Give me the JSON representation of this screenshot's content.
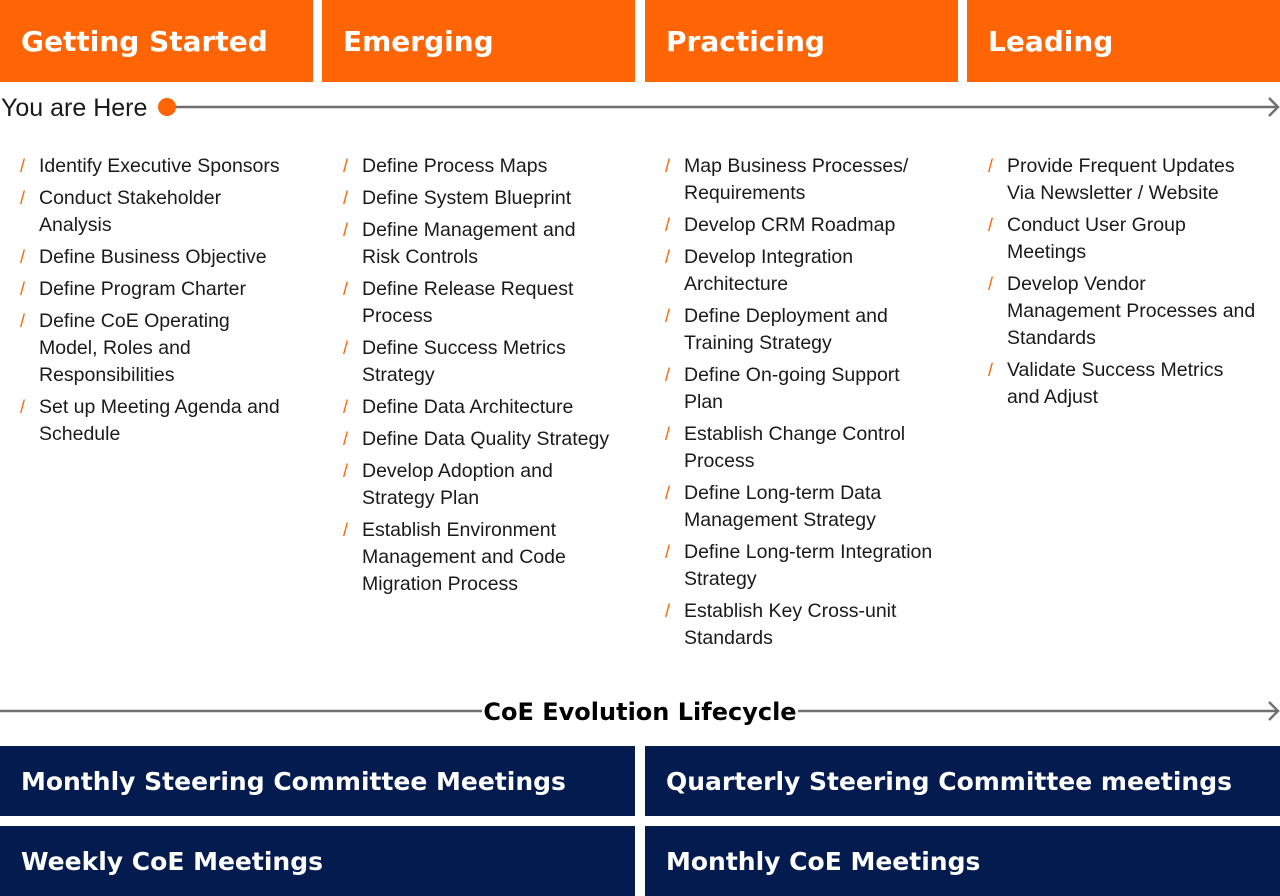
{
  "stages": [
    {
      "title": "Getting Started"
    },
    {
      "title": "Emerging"
    },
    {
      "title": "Practicing"
    },
    {
      "title": "Leading"
    }
  ],
  "timeline": {
    "here_label": "You are Here",
    "marker_color": "#ff6405",
    "line_color": "#707070"
  },
  "columns": [
    [
      "Identify Executive Sponsors",
      "Conduct Stakeholder Analysis",
      "Define Business Objective",
      "Define Program Charter",
      "Define CoE Operating Model, Roles and Responsibilities",
      "Set up Meeting Agenda and Schedule"
    ],
    [
      "Define Process Maps",
      "Define System Blueprint",
      "Define Management and Risk Controls",
      "Define Release Request Process",
      "Define Success Metrics Strategy",
      "Define Data Architecture",
      "Define Data Quality Strategy",
      "Develop Adoption and Strategy Plan",
      "Establish Environment Management and Code Migration Process"
    ],
    [
      "Map Business Processes/ Requirements",
      "Develop CRM Roadmap",
      "Develop Integration Architecture",
      "Define Deployment and Training Strategy",
      "Define On-going Support Plan",
      "Establish Change Control Process",
      "Define Long-term Data Management Strategy",
      "Define Long-term Integration Strategy",
      "Establish Key Cross-unit Standards"
    ],
    [
      "Provide Frequent Updates Via Newsletter / Website",
      "Conduct User Group Meetings",
      "Develop Vendor Management Processes and Standards",
      "Validate Success Metrics and Adjust"
    ]
  ],
  "bullet_glyph": "/",
  "lifecycle": {
    "title": "CoE Evolution Lifecycle"
  },
  "meetings": [
    {
      "label": "Monthly Steering Committee Meetings"
    },
    {
      "label": "Quarterly Steering Committee meetings"
    },
    {
      "label": "Weekly CoE Meetings"
    },
    {
      "label": "Monthly CoE Meetings"
    }
  ],
  "colors": {
    "accent": "#ff6405",
    "navy": "#031b4e"
  }
}
